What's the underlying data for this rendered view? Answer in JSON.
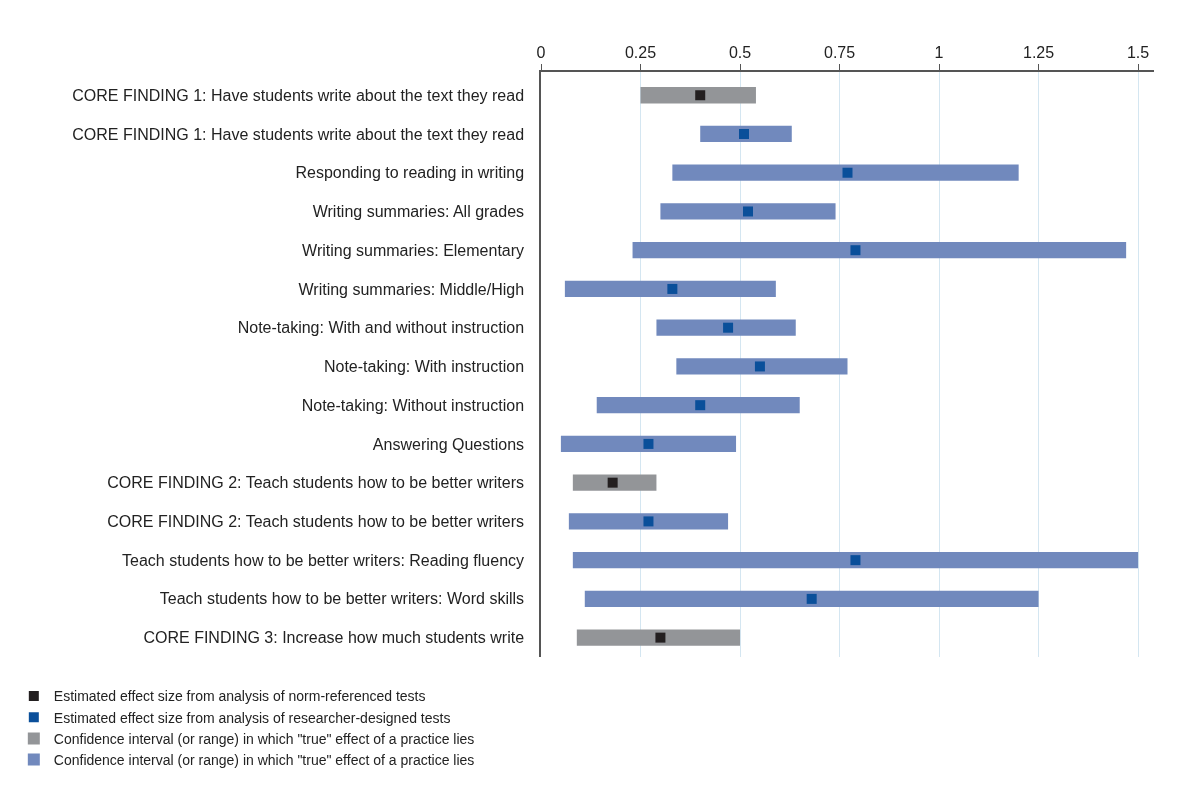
{
  "chart_data": {
    "type": "bar",
    "orientation": "horizontal",
    "categories": [
      "CORE FINDING 1: Have students write about the text they read",
      "CORE FINDING 1: Have students write about the text they read",
      "Responding to reading in writing",
      "Writing summaries: All grades",
      "Writing summaries: Elementary",
      "Writing summaries: Middle/High",
      "Note-taking: With and without instruction",
      "Note-taking: With instruction",
      "Note-taking: Without instruction",
      "Answering Questions",
      "CORE FINDING 2: Teach students how to be better writers",
      "CORE FINDING 2: Teach students how to be better writers",
      "Teach students how to be better writers: Reading fluency",
      "Teach students how to be better writers: Word skills",
      "CORE FINDING 3: Increase how much students write"
    ],
    "series": [
      {
        "name": "Estimated effect size from analysis of norm-referenced tests",
        "type": "scatter",
        "color": "#231f20",
        "values": [
          0.4,
          null,
          null,
          null,
          null,
          null,
          null,
          null,
          null,
          null,
          0.18,
          null,
          null,
          null,
          0.3
        ]
      },
      {
        "name": "Estimated effect size from analysis of researcher-designed tests",
        "type": "scatter",
        "color": "#0a4f9a",
        "values": [
          null,
          0.51,
          0.77,
          0.52,
          0.79,
          0.33,
          0.47,
          0.55,
          0.4,
          0.27,
          null,
          0.27,
          0.79,
          0.68,
          null
        ]
      },
      {
        "name": "Confidence interval (or range) in which \"true\" effect of a practice lies",
        "color": "#939598",
        "base": [
          0.25,
          null,
          null,
          null,
          null,
          null,
          null,
          null,
          null,
          null,
          0.08,
          null,
          null,
          null,
          0.09
        ],
        "values": [
          0.29,
          null,
          null,
          null,
          null,
          null,
          null,
          null,
          null,
          null,
          0.21,
          null,
          null,
          null,
          0.41
        ]
      },
      {
        "name": "Confidence interval (or range) in which \"true\" effect of a practice lies",
        "color": "#7189bd",
        "base": [
          null,
          0.4,
          0.33,
          0.3,
          0.23,
          0.06,
          0.29,
          0.34,
          0.14,
          0.05,
          null,
          0.07,
          0.08,
          0.11,
          null
        ],
        "values": [
          null,
          0.23,
          0.87,
          0.44,
          1.24,
          0.53,
          0.35,
          0.43,
          0.51,
          0.44,
          null,
          0.4,
          1.42,
          1.14,
          null
        ]
      }
    ],
    "xlim": [
      0,
      1.54
    ],
    "xticks": [
      0,
      0.25,
      0.5,
      0.75,
      1,
      1.25,
      1.5
    ],
    "grid": "x",
    "legend": "bottom",
    "marker": "square"
  }
}
